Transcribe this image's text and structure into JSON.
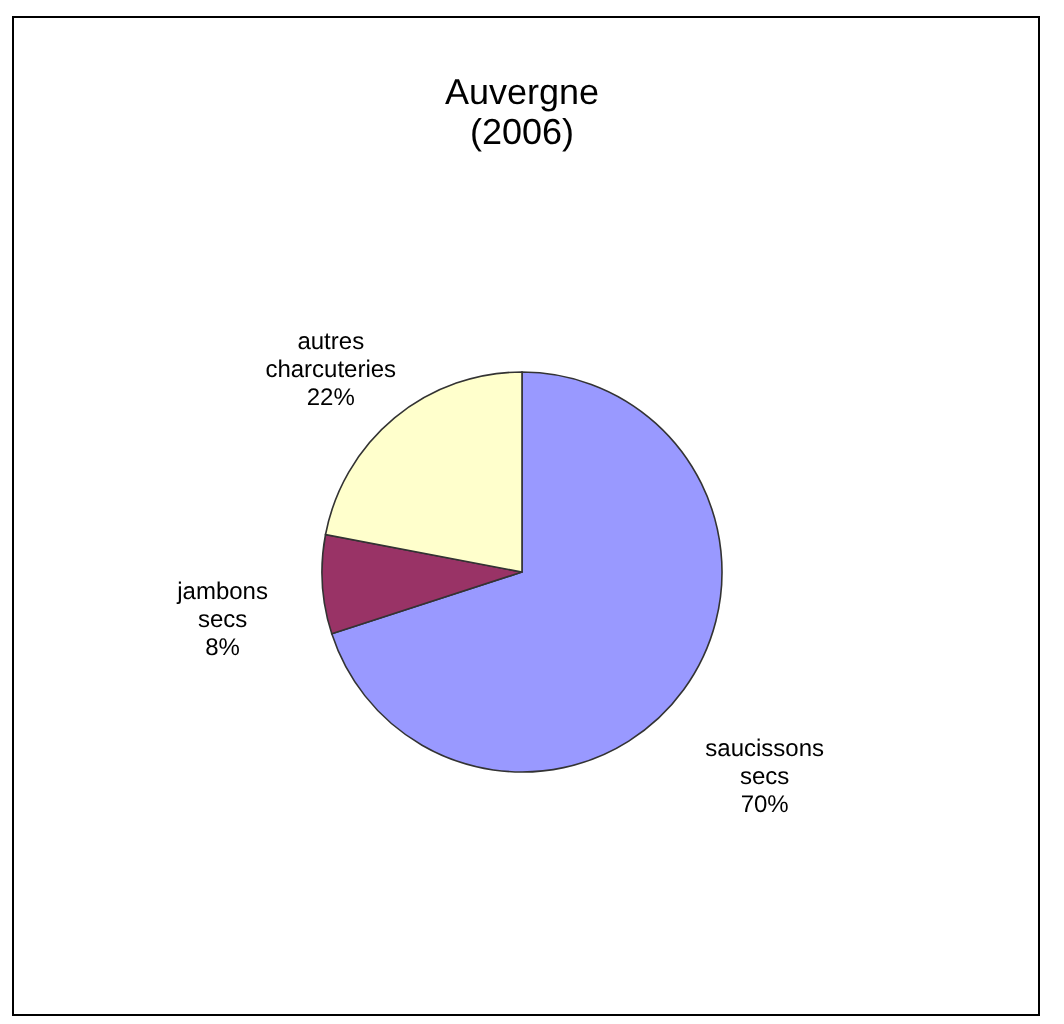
{
  "chart_data": {
    "type": "pie",
    "title": "Auvergne (2006)",
    "categories": [
      "saucissons secs",
      "jambons secs",
      "autres charcuteries"
    ],
    "values": [
      70,
      8,
      22
    ],
    "colors": [
      "#9999ff",
      "#993366",
      "#ffffcc"
    ],
    "value_labels": [
      "70%",
      "8%",
      "22%"
    ]
  }
}
